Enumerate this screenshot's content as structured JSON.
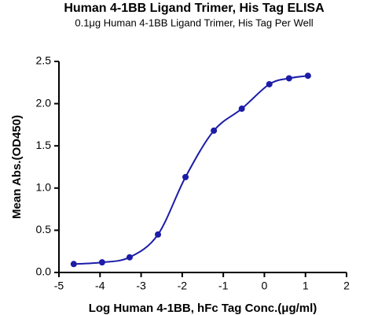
{
  "chart_data": {
    "type": "scatter",
    "title": "Human 4-1BB Ligand Trimer, His Tag ELISA",
    "subtitle": "0.1μg Human 4-1BB Ligand Trimer, His Tag Per Well",
    "x_label": "Log Human 4-1BB, hFc Tag Conc.(μg/ml)",
    "y_label": "Mean Abs.(OD450)",
    "x": [
      -4.64,
      -3.95,
      -3.28,
      -2.59,
      -1.92,
      -1.23,
      -0.55,
      0.12,
      0.6,
      1.06
    ],
    "values": [
      0.1,
      0.12,
      0.18,
      0.45,
      1.13,
      1.68,
      1.94,
      2.23,
      2.3,
      2.33
    ],
    "color": "#1c1ca8",
    "xlim": [
      -5,
      2
    ],
    "xticks": [
      -5,
      -4,
      -3,
      -2,
      -1,
      0,
      1,
      2
    ],
    "ylim": [
      0,
      2.5
    ],
    "yticks": [
      {
        "value": 0,
        "label": "0.0"
      },
      0.5,
      {
        "value": 1,
        "label": "1.0"
      },
      1.5,
      {
        "value": 2,
        "label": "2.0"
      },
      2.5
    ]
  }
}
